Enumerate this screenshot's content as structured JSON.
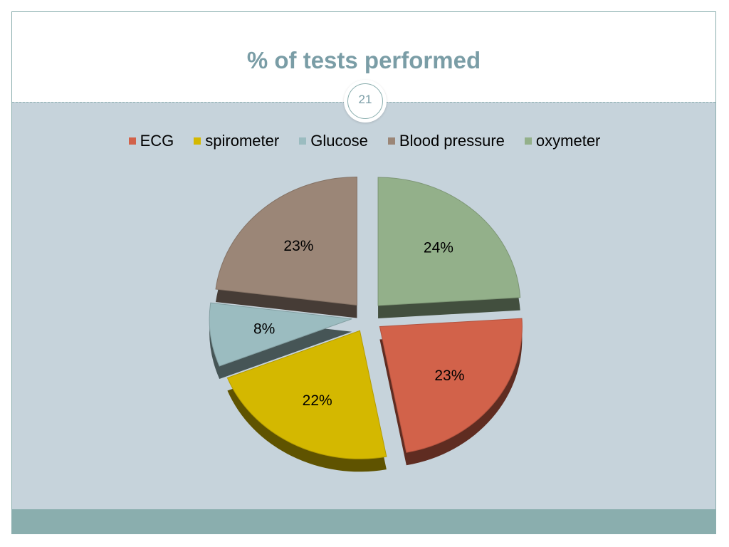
{
  "slide": {
    "title": "% of tests performed",
    "page_number": "21"
  },
  "chart_data": {
    "type": "pie",
    "style": "3d-exploded",
    "categories": [
      "ECG",
      "spirometer",
      "Glucose",
      "Blood pressure",
      "oxymeter"
    ],
    "values": [
      23,
      22,
      8,
      23,
      24
    ],
    "data_labels": [
      "23%",
      "22%",
      "8%",
      "23%",
      "24%"
    ],
    "colors": [
      "#d2624a",
      "#d4b800",
      "#9bbcc0",
      "#9b8677",
      "#93b08a"
    ],
    "legend_position": "top"
  }
}
